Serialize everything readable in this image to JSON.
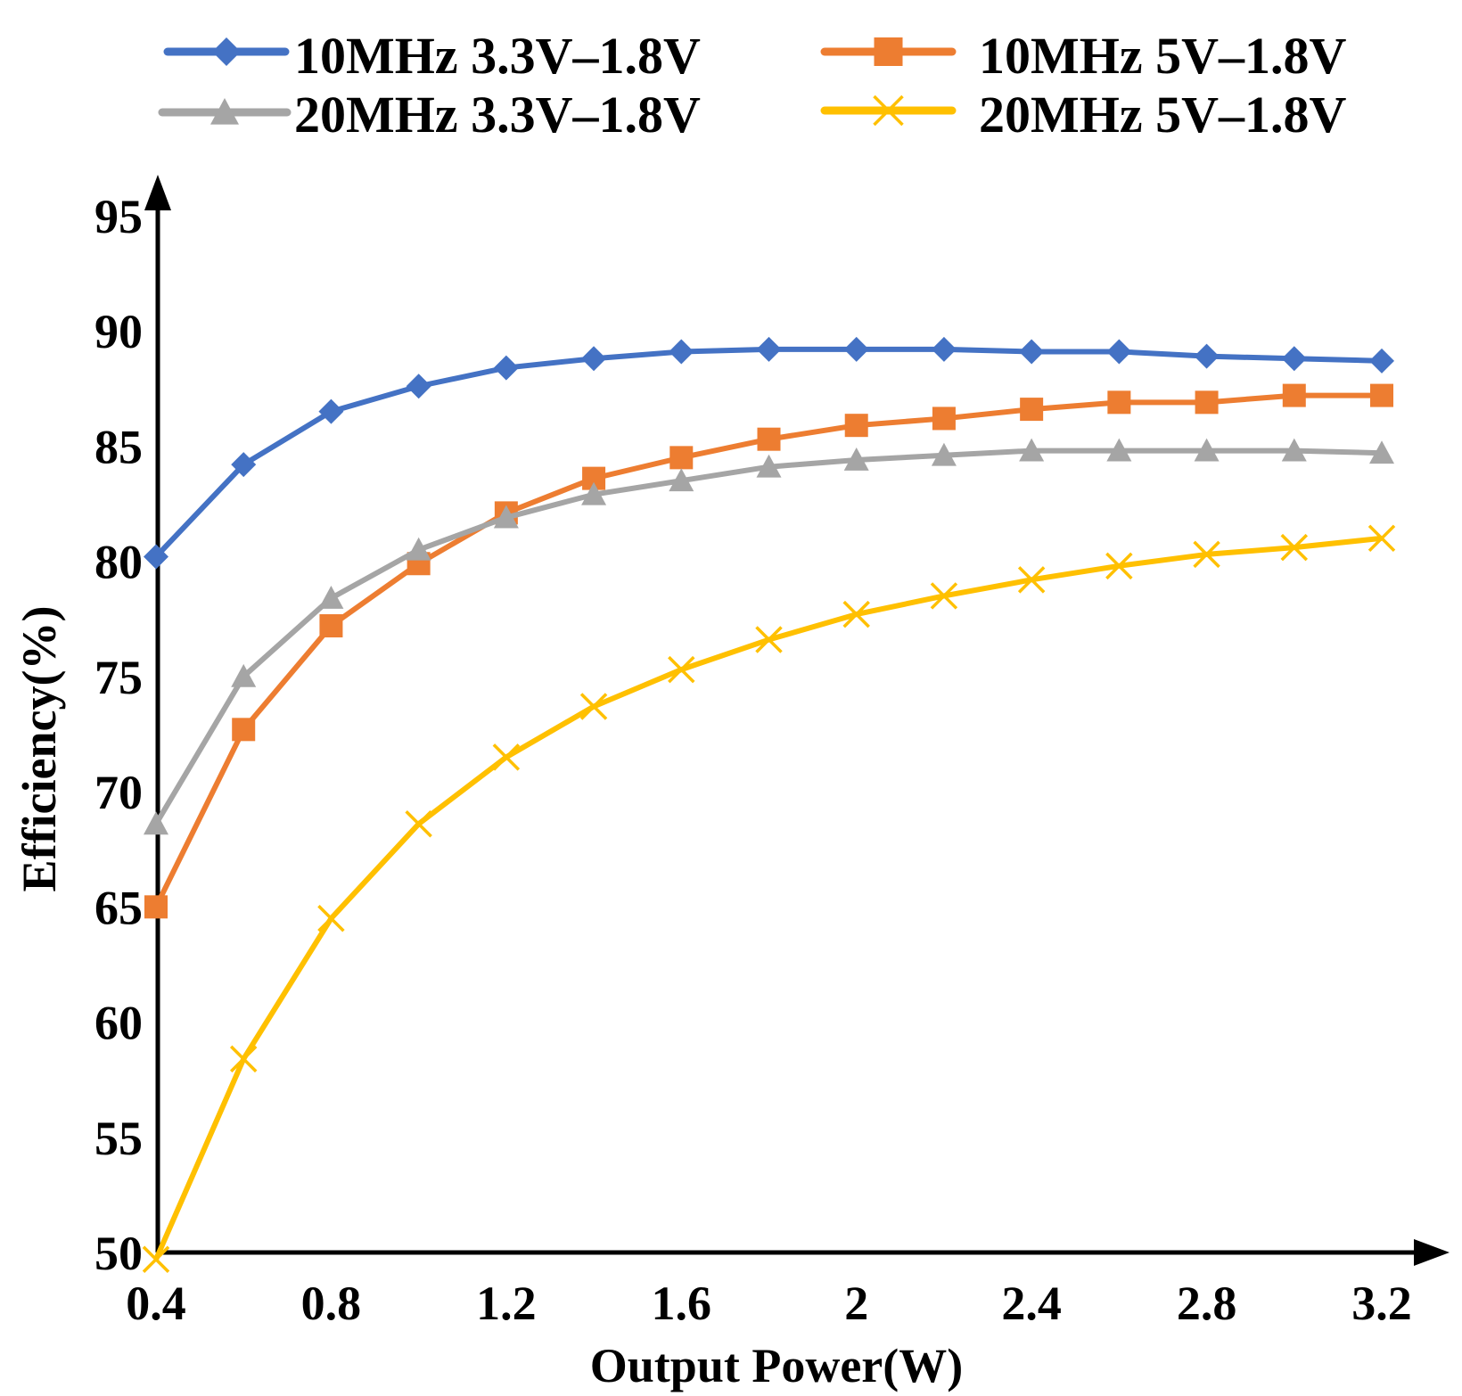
{
  "chart_data": {
    "type": "line",
    "title": "",
    "xlabel": "Output Power(W)",
    "ylabel": "Efficiency(%)",
    "xlim": [
      0.4,
      3.2
    ],
    "ylim": [
      50,
      95
    ],
    "x": [
      0.4,
      0.6,
      0.8,
      1.0,
      1.2,
      1.4,
      1.6,
      1.8,
      2.0,
      2.2,
      2.4,
      2.6,
      2.8,
      3.0,
      3.2
    ],
    "x_ticks": [
      "0.4",
      "0.8",
      "1.2",
      "1.6",
      "2",
      "2.4",
      "2.8",
      "3.2"
    ],
    "x_tick_values": [
      0.4,
      0.8,
      1.2,
      1.6,
      2.0,
      2.4,
      2.8,
      3.2
    ],
    "y_ticks": [
      "50",
      "55",
      "60",
      "65",
      "70",
      "75",
      "80",
      "85",
      "90",
      "95"
    ],
    "y_tick_values": [
      50,
      55,
      60,
      65,
      70,
      75,
      80,
      85,
      90,
      95
    ],
    "grid": false,
    "legend_position": "top",
    "series": [
      {
        "name": "10MHz 3.3V–1.8V",
        "color": "#4472C4",
        "marker": "diamond",
        "values": [
          80.2,
          84.2,
          86.5,
          87.6,
          88.4,
          88.8,
          89.1,
          89.2,
          89.2,
          89.2,
          89.1,
          89.1,
          88.9,
          88.8,
          88.7
        ]
      },
      {
        "name": "10MHz 5V–1.8V",
        "color": "#ED7D31",
        "marker": "square",
        "values": [
          65.0,
          72.7,
          77.2,
          79.9,
          82.1,
          83.6,
          84.5,
          85.3,
          85.9,
          86.2,
          86.6,
          86.9,
          86.9,
          87.2,
          87.2
        ]
      },
      {
        "name": "20MHz 3.3V–1.8V",
        "color": "#A5A5A5",
        "marker": "triangle",
        "values": [
          68.6,
          75.0,
          78.4,
          80.5,
          81.9,
          82.9,
          83.5,
          84.1,
          84.4,
          84.6,
          84.8,
          84.8,
          84.8,
          84.8,
          84.7
        ]
      },
      {
        "name": "20MHz 5V–1.8V",
        "color": "#FFC000",
        "marker": "x",
        "values": [
          49.7,
          58.4,
          64.5,
          68.6,
          71.5,
          73.7,
          75.3,
          76.6,
          77.7,
          78.5,
          79.2,
          79.8,
          80.3,
          80.6,
          81.0
        ]
      }
    ]
  }
}
